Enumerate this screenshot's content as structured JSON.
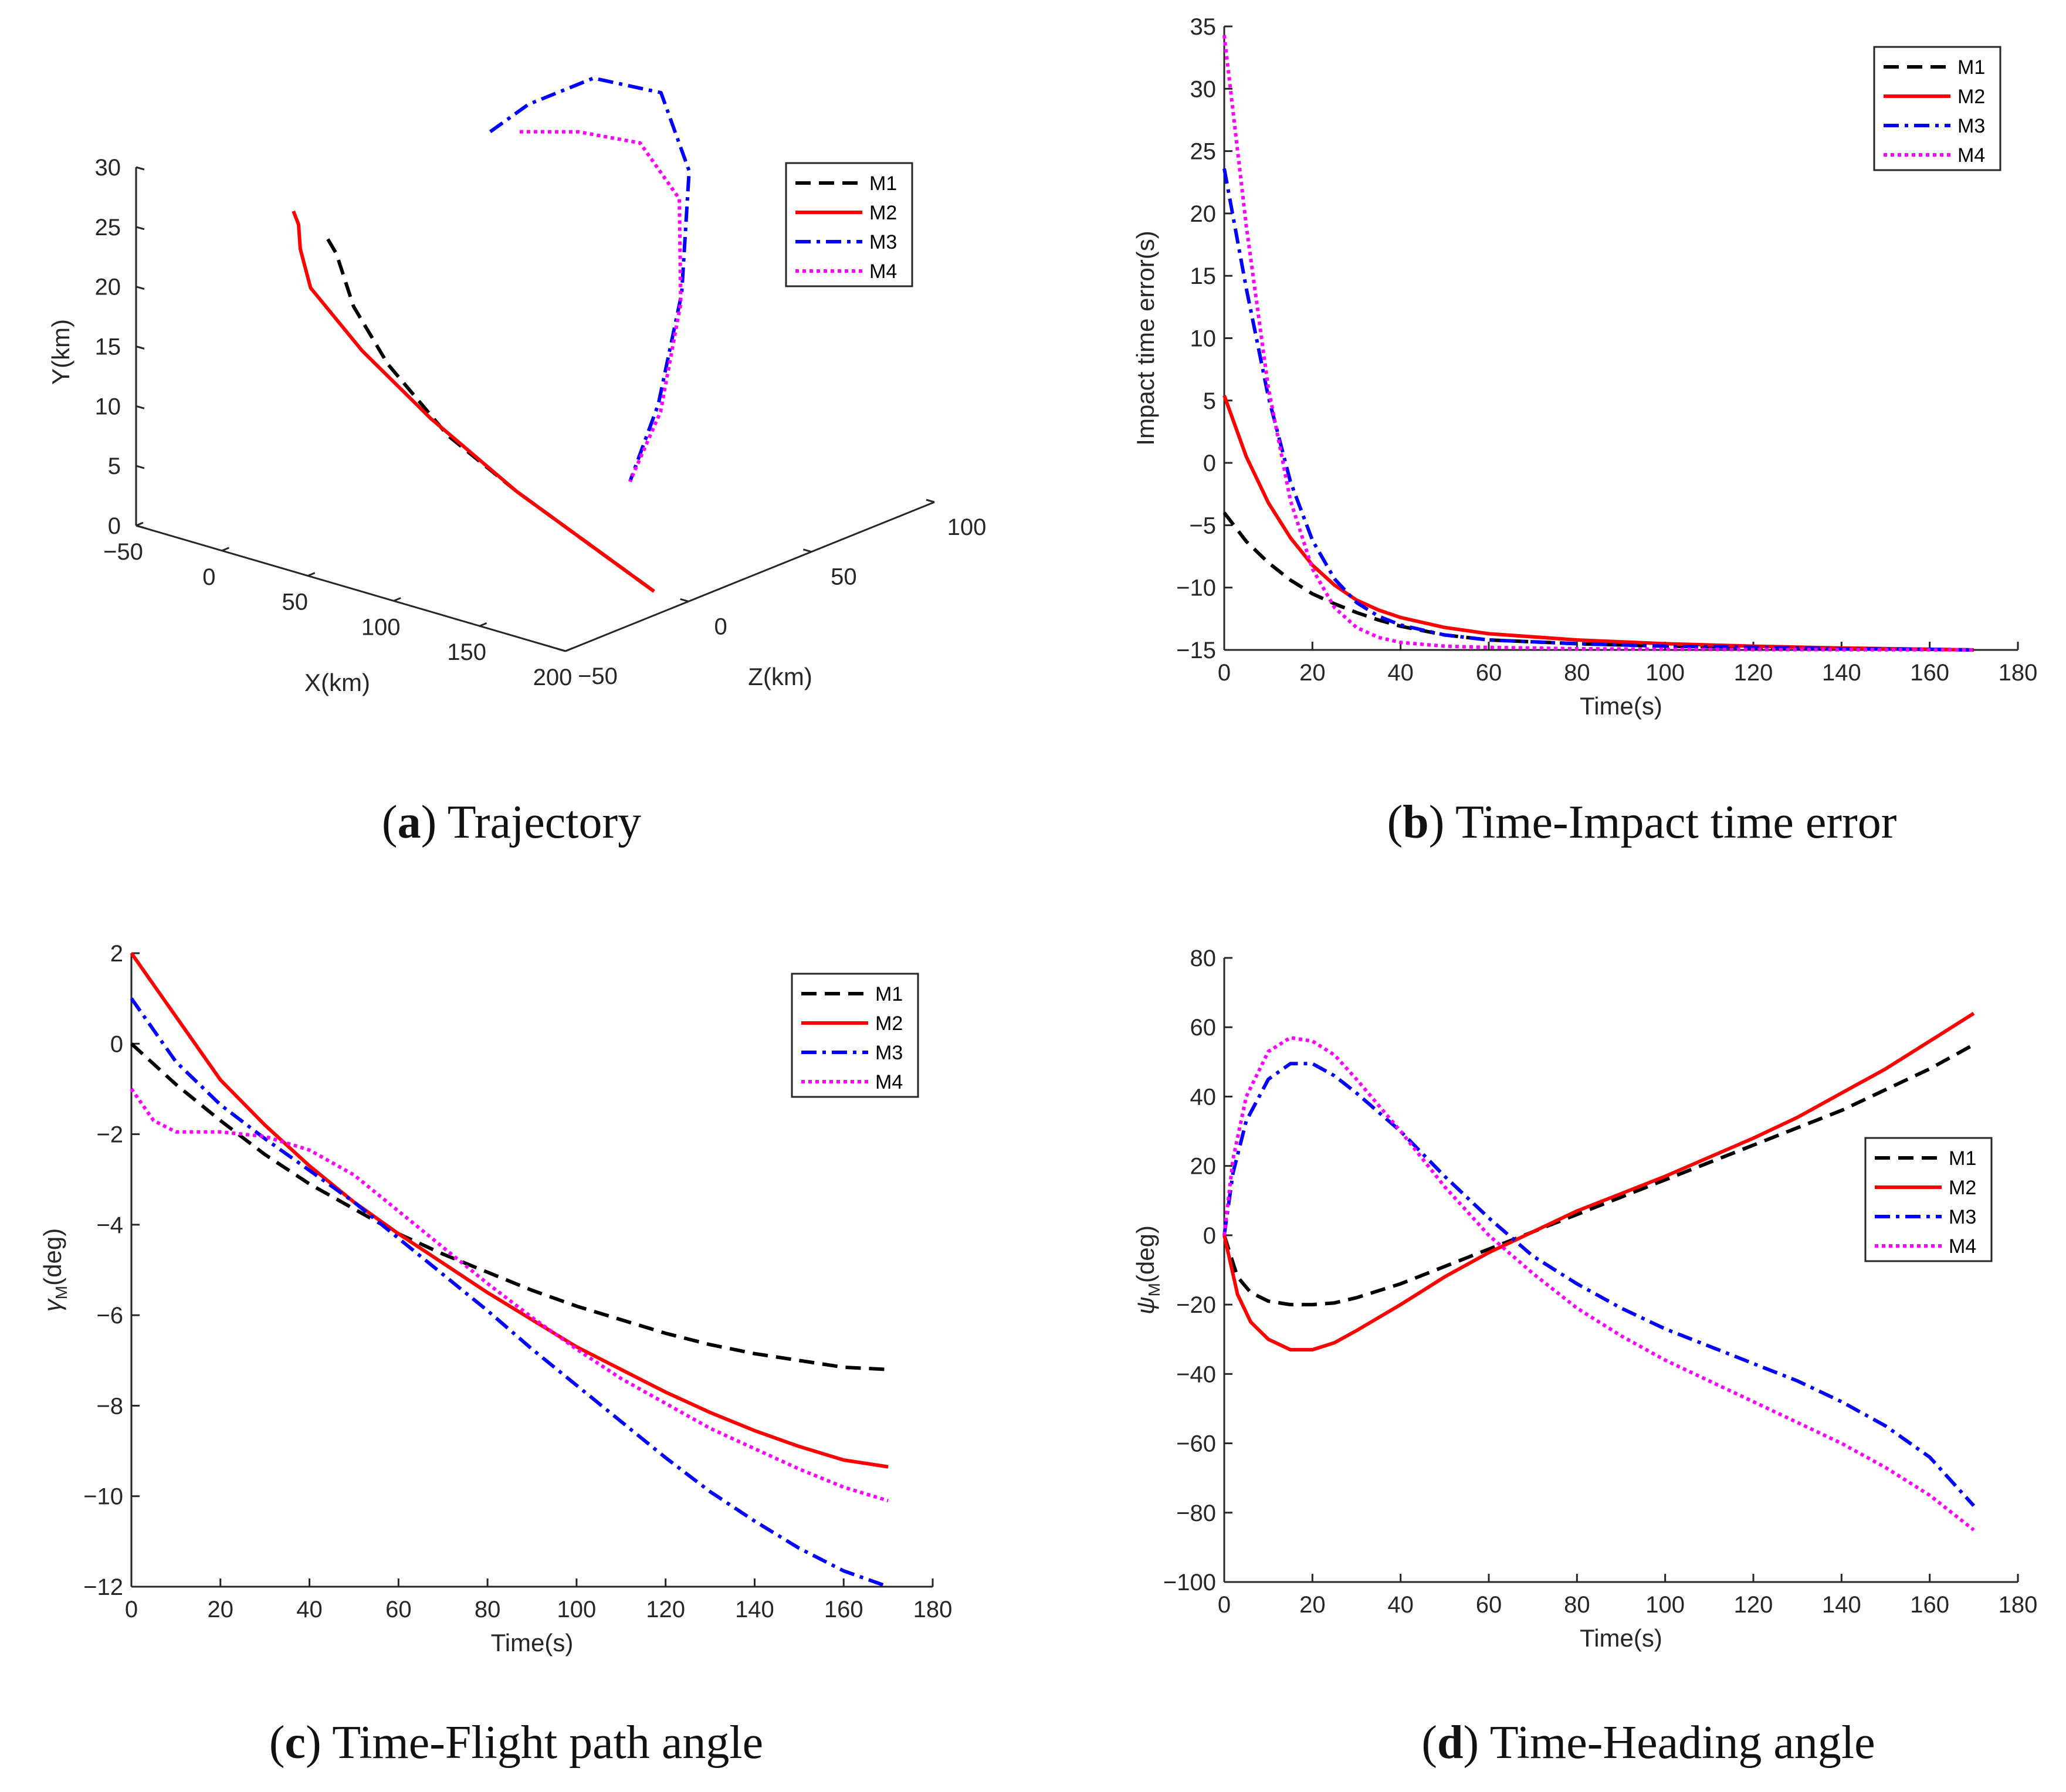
{
  "chart_data": [
    {
      "id": "a",
      "type": "line",
      "subtype": "3d-trajectory",
      "caption": {
        "letter": "a",
        "title": "Trajectory"
      },
      "xlabel": "X(km)",
      "ylabel": "Y(km)",
      "zlabel": "Z(km)",
      "xticks": [
        "−50",
        "0",
        "50",
        "100",
        "150",
        "200"
      ],
      "yticks": [
        "0",
        "5",
        "10",
        "15",
        "20",
        "25",
        "30"
      ],
      "zticks": [
        "−50",
        "0",
        "50",
        "100"
      ],
      "xlim": [
        -50,
        200
      ],
      "ylim": [
        0,
        30
      ],
      "zlim": [
        -50,
        100
      ],
      "legend": [
        "M1",
        "M2",
        "M3",
        "M4"
      ],
      "series": [
        {
          "name": "M1",
          "color": "#000000",
          "style": "dashed",
          "points": [
            [
              -10,
              0,
              21.5
            ],
            [
              -5,
              0,
              20.5
            ],
            [
              5,
              0,
              16.5
            ],
            [
              25,
              0,
              12.5
            ],
            [
              60,
              0,
              8
            ],
            [
              100,
              0,
              5
            ],
            [
              140,
              0,
              2.5
            ],
            [
              180,
              0,
              0
            ]
          ]
        },
        {
          "name": "M2",
          "color": "#ff0000",
          "style": "solid",
          "points": [
            [
              -30,
              0,
              23
            ],
            [
              -27,
              0,
              22
            ],
            [
              -26,
              0,
              20
            ],
            [
              -20,
              0,
              17
            ],
            [
              10,
              0,
              13
            ],
            [
              50,
              0,
              9
            ],
            [
              100,
              0,
              5
            ],
            [
              180,
              0,
              0
            ]
          ]
        },
        {
          "name": "M3",
          "color": "#0000ff",
          "style": "dashdot",
          "points": [
            [
              -30,
              80,
              23
            ],
            [
              -25,
              92,
              24.5
            ],
            [
              -10,
              108,
              26
            ],
            [
              15,
              118,
              25
            ],
            [
              40,
              112,
              20
            ],
            [
              60,
              95,
              12
            ],
            [
              75,
              75,
              5
            ],
            [
              80,
              60,
              0
            ]
          ]
        },
        {
          "name": "M4",
          "color": "#ff00ff",
          "style": "dotted",
          "points": [
            [
              -20,
              85,
              23
            ],
            [
              0,
              95,
              23
            ],
            [
              20,
              106,
              22
            ],
            [
              40,
              108,
              18
            ],
            [
              58,
              96,
              11
            ],
            [
              72,
              78,
              4
            ],
            [
              80,
              60,
              0
            ]
          ]
        }
      ]
    },
    {
      "id": "b",
      "type": "line",
      "caption": {
        "letter": "b",
        "title": "Time-Impact time error"
      },
      "xlabel": "Time(s)",
      "ylabel": "Impact time error(s)",
      "xlim": [
        0,
        180
      ],
      "ylim": [
        -15,
        35
      ],
      "xticks": [
        0,
        20,
        40,
        60,
        80,
        100,
        120,
        140,
        160,
        180
      ],
      "yticks": [
        -15,
        -10,
        -5,
        0,
        5,
        10,
        15,
        20,
        25,
        30,
        35
      ],
      "legend": [
        "M1",
        "M2",
        "M3",
        "M4"
      ],
      "series": [
        {
          "name": "M1",
          "color": "#000000",
          "style": "dashed",
          "x": [
            0,
            5,
            10,
            15,
            20,
            25,
            30,
            35,
            40,
            50,
            60,
            80,
            100,
            120,
            140,
            160,
            170
          ],
          "y": [
            -4,
            -6.3,
            -8,
            -9.4,
            -10.5,
            -11.3,
            -12,
            -12.6,
            -13.1,
            -13.8,
            -14.2,
            -14.5,
            -14.7,
            -14.8,
            -14.9,
            -14.95,
            -15
          ]
        },
        {
          "name": "M2",
          "color": "#ff0000",
          "style": "solid",
          "x": [
            0,
            5,
            10,
            15,
            20,
            25,
            30,
            35,
            40,
            50,
            60,
            80,
            100,
            120,
            140,
            160,
            170
          ],
          "y": [
            5.4,
            0.5,
            -3.2,
            -6,
            -8.2,
            -9.8,
            -11,
            -11.8,
            -12.4,
            -13.2,
            -13.7,
            -14.2,
            -14.5,
            -14.7,
            -14.85,
            -14.95,
            -15
          ]
        },
        {
          "name": "M3",
          "color": "#0000ff",
          "style": "dashdot",
          "x": [
            0,
            5,
            10,
            15,
            20,
            25,
            30,
            35,
            40,
            50,
            60,
            80,
            100,
            120,
            140,
            160,
            170
          ],
          "y": [
            23.6,
            14,
            5.3,
            -1.5,
            -6.2,
            -9.3,
            -11.2,
            -12.3,
            -13,
            -13.8,
            -14.2,
            -14.5,
            -14.7,
            -14.8,
            -14.9,
            -14.95,
            -15
          ]
        },
        {
          "name": "M4",
          "color": "#ff00ff",
          "style": "dotted",
          "x": [
            0,
            5,
            10,
            15,
            20,
            25,
            30,
            35,
            40,
            50,
            60,
            80,
            100,
            120,
            140,
            160,
            170
          ],
          "y": [
            34.3,
            19,
            6,
            -3,
            -8.5,
            -11.6,
            -13.2,
            -14,
            -14.4,
            -14.7,
            -14.8,
            -14.9,
            -14.95,
            -14.97,
            -14.98,
            -14.99,
            -15
          ]
        }
      ]
    },
    {
      "id": "c",
      "type": "line",
      "caption": {
        "letter": "c",
        "title": "Time-Flight path angle"
      },
      "xlabel": "Time(s)",
      "ylabel": "γM(deg)",
      "ylabel_main": "γ",
      "ylabel_sub": "M",
      "ylabel_rest": "(deg)",
      "xlim": [
        0,
        180
      ],
      "ylim": [
        -12,
        2
      ],
      "xticks": [
        0,
        20,
        40,
        60,
        80,
        100,
        120,
        140,
        160,
        180
      ],
      "yticks": [
        -12,
        -10,
        -8,
        -6,
        -4,
        -2,
        0,
        2
      ],
      "legend": [
        "M1",
        "M2",
        "M3",
        "M4"
      ],
      "series": [
        {
          "name": "M1",
          "color": "#000000",
          "style": "dashed",
          "x": [
            0,
            10,
            20,
            30,
            40,
            50,
            60,
            70,
            80,
            90,
            100,
            110,
            120,
            130,
            140,
            150,
            160,
            170
          ],
          "y": [
            0,
            -0.9,
            -1.7,
            -2.45,
            -3.1,
            -3.65,
            -4.2,
            -4.65,
            -5.05,
            -5.45,
            -5.8,
            -6.1,
            -6.4,
            -6.65,
            -6.85,
            -7,
            -7.15,
            -7.2
          ]
        },
        {
          "name": "M2",
          "color": "#ff0000",
          "style": "solid",
          "x": [
            0,
            10,
            20,
            30,
            40,
            50,
            60,
            70,
            80,
            90,
            100,
            110,
            120,
            130,
            140,
            150,
            160,
            170
          ],
          "y": [
            2,
            0.6,
            -0.8,
            -1.8,
            -2.7,
            -3.5,
            -4.2,
            -4.85,
            -5.5,
            -6.1,
            -6.7,
            -7.2,
            -7.7,
            -8.15,
            -8.55,
            -8.9,
            -9.2,
            -9.35
          ]
        },
        {
          "name": "M3",
          "color": "#0000ff",
          "style": "dashdot",
          "x": [
            0,
            10,
            20,
            30,
            40,
            50,
            60,
            70,
            80,
            90,
            100,
            110,
            120,
            130,
            140,
            150,
            160,
            170
          ],
          "y": [
            1,
            -0.4,
            -1.35,
            -2.1,
            -2.8,
            -3.5,
            -4.3,
            -5.1,
            -5.9,
            -6.75,
            -7.55,
            -8.35,
            -9.15,
            -9.9,
            -10.55,
            -11.15,
            -11.65,
            -12
          ]
        },
        {
          "name": "M4",
          "color": "#ff00ff",
          "style": "dotted",
          "x": [
            0,
            5,
            10,
            15,
            20,
            30,
            40,
            50,
            60,
            70,
            80,
            90,
            100,
            110,
            120,
            130,
            140,
            150,
            160,
            170
          ],
          "y": [
            -1,
            -1.7,
            -1.95,
            -1.95,
            -1.95,
            -2.05,
            -2.35,
            -2.9,
            -3.7,
            -4.5,
            -5.3,
            -6.05,
            -6.75,
            -7.4,
            -7.95,
            -8.5,
            -8.95,
            -9.4,
            -9.8,
            -10.1
          ]
        }
      ]
    },
    {
      "id": "d",
      "type": "line",
      "caption": {
        "letter": "d",
        "title": "Time-Heading angle"
      },
      "xlabel": "Time(s)",
      "ylabel": "ψM(deg)",
      "ylabel_main": "ψ",
      "ylabel_sub": "M",
      "ylabel_rest": "(deg)",
      "xlim": [
        0,
        180
      ],
      "ylim": [
        -100,
        80
      ],
      "xticks": [
        0,
        20,
        40,
        60,
        80,
        100,
        120,
        140,
        160,
        180
      ],
      "yticks": [
        -100,
        -80,
        -60,
        -40,
        -20,
        0,
        20,
        40,
        60,
        80
      ],
      "legend": [
        "M1",
        "M2",
        "M3",
        "M4"
      ],
      "series": [
        {
          "name": "M1",
          "color": "#000000",
          "style": "dashed",
          "x": [
            0,
            3,
            6,
            10,
            15,
            20,
            25,
            30,
            40,
            50,
            60,
            70,
            80,
            90,
            100,
            110,
            120,
            130,
            140,
            150,
            160,
            170
          ],
          "y": [
            0,
            -12,
            -16.5,
            -19,
            -20,
            -20,
            -19.5,
            -18,
            -14,
            -9,
            -4,
            1,
            6,
            11,
            16,
            21,
            26,
            31,
            36,
            42,
            48,
            55
          ]
        },
        {
          "name": "M2",
          "color": "#ff0000",
          "style": "solid",
          "x": [
            0,
            3,
            6,
            10,
            15,
            20,
            25,
            30,
            40,
            50,
            60,
            70,
            80,
            90,
            100,
            110,
            120,
            130,
            140,
            150,
            160,
            170
          ],
          "y": [
            0,
            -17,
            -25,
            -30,
            -33,
            -33,
            -31,
            -27.5,
            -20,
            -12,
            -5,
            1,
            7,
            12,
            17,
            22.5,
            28,
            34,
            41,
            48,
            56,
            64
          ]
        },
        {
          "name": "M3",
          "color": "#0000ff",
          "style": "dashdot",
          "x": [
            0,
            2,
            5,
            10,
            15,
            20,
            25,
            30,
            40,
            50,
            60,
            70,
            80,
            90,
            100,
            110,
            120,
            130,
            140,
            150,
            160,
            170
          ],
          "y": [
            0,
            18,
            33,
            45,
            49.5,
            49.5,
            46,
            41,
            30,
            17,
            5,
            -6,
            -14,
            -21,
            -27,
            -32,
            -37,
            -42,
            -48,
            -55,
            -64,
            -78
          ]
        },
        {
          "name": "M4",
          "color": "#ff00ff",
          "style": "dotted",
          "x": [
            0,
            2,
            5,
            10,
            15,
            20,
            25,
            30,
            40,
            50,
            60,
            70,
            80,
            90,
            100,
            110,
            120,
            130,
            140,
            150,
            160,
            170
          ],
          "y": [
            0,
            22,
            40,
            53,
            57,
            56,
            52,
            45,
            30,
            14,
            0,
            -11,
            -21,
            -29,
            -36,
            -42,
            -48,
            -54,
            -60,
            -67,
            -75,
            -85
          ]
        }
      ]
    }
  ]
}
